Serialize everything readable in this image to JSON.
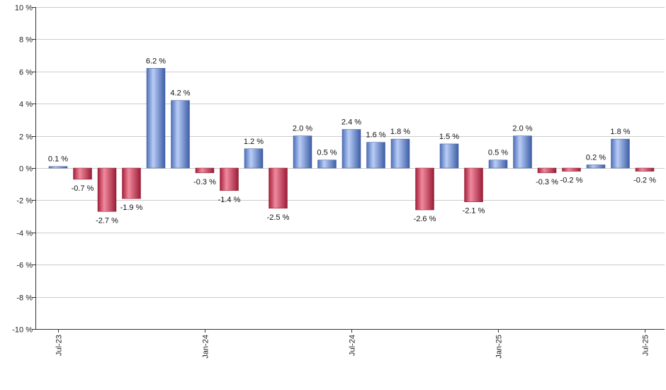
{
  "chart_data": {
    "type": "bar",
    "title": "",
    "xlabel": "",
    "ylabel": "",
    "ylim": [
      -10,
      10
    ],
    "y_ticks": [
      10,
      8,
      6,
      4,
      2,
      0,
      -2,
      -4,
      -6,
      -8,
      -10
    ],
    "y_tick_suffix": " %",
    "grid": true,
    "legend": "none",
    "colors": {
      "positive": "#6f8fd8",
      "negative": "#c8334f",
      "grid": "#cccccc",
      "axis": "#333333"
    },
    "categories": [
      "Jul-23",
      "Aug-23",
      "Sep-23",
      "Oct-23",
      "Nov-23",
      "Dec-23",
      "Jan-24",
      "Feb-24",
      "Mar-24",
      "Apr-24",
      "May-24",
      "Jun-24",
      "Jul-24",
      "Aug-24",
      "Sep-24",
      "Oct-24",
      "Nov-24",
      "Dec-24",
      "Jan-25",
      "Feb-25",
      "Mar-25",
      "Apr-25",
      "May-25",
      "Jun-25",
      "Jul-25"
    ],
    "x_tick_labels": [
      {
        "index": 0,
        "label": "Jul-23"
      },
      {
        "index": 6,
        "label": "Jan-24"
      },
      {
        "index": 12,
        "label": "Jul-24"
      },
      {
        "index": 18,
        "label": "Jan-25"
      },
      {
        "index": 24,
        "label": "Jul-25"
      }
    ],
    "values": [
      0.1,
      -0.7,
      -2.7,
      -1.9,
      6.2,
      4.2,
      -0.3,
      -1.4,
      1.2,
      -2.5,
      2.0,
      0.5,
      2.4,
      1.6,
      1.8,
      -2.6,
      1.5,
      -2.1,
      0.5,
      2.0,
      -0.3,
      -0.2,
      0.2,
      1.8,
      -0.2
    ],
    "data_labels": [
      "0.1 %",
      "-0.7 %",
      "-2.7 %",
      "-1.9 %",
      "6.2 %",
      "4.2 %",
      "-0.3 %",
      "-1.4 %",
      "1.2 %",
      "-2.5 %",
      "2.0 %",
      "0.5 %",
      "2.4 %",
      "1.6 %",
      "1.8 %",
      "-2.6 %",
      "1.5 %",
      "-2.1 %",
      "0.5 %",
      "2.0 %",
      "-0.3 %",
      "-0.2 %",
      "0.2 %",
      "1.8 %",
      "-0.2 %"
    ]
  }
}
